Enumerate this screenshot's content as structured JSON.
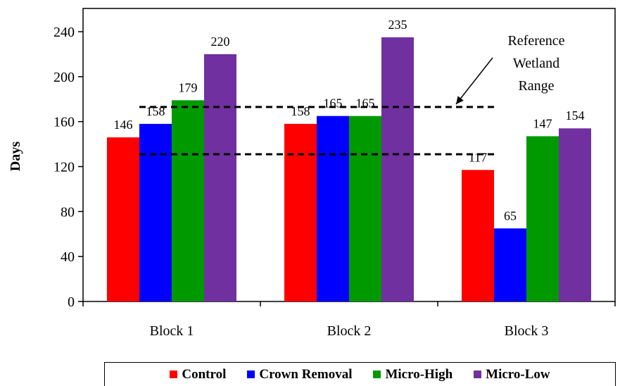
{
  "chart_data": {
    "type": "bar",
    "categories": [
      "Block 1",
      "Block 2",
      "Block 3"
    ],
    "series": [
      {
        "name": "Control",
        "color": "#ff0000",
        "values": [
          146,
          158,
          117
        ]
      },
      {
        "name": "Crown Removal",
        "color": "#0000ff",
        "values": [
          158,
          165,
          65
        ]
      },
      {
        "name": "Micro-High",
        "color": "#009900",
        "values": [
          179,
          165,
          147
        ]
      },
      {
        "name": "Micro-Low",
        "color": "#7030a0",
        "values": [
          220,
          235,
          154
        ]
      }
    ],
    "ylabel": "Days",
    "ylim": [
      0,
      240
    ],
    "yticks": [
      0,
      40,
      80,
      120,
      160,
      200,
      240
    ],
    "grid": false,
    "legend_position": "bottom",
    "reference_range": {
      "lower": 131,
      "upper": 173,
      "label_lines": [
        "Reference",
        "Wetland",
        "Range"
      ]
    }
  }
}
